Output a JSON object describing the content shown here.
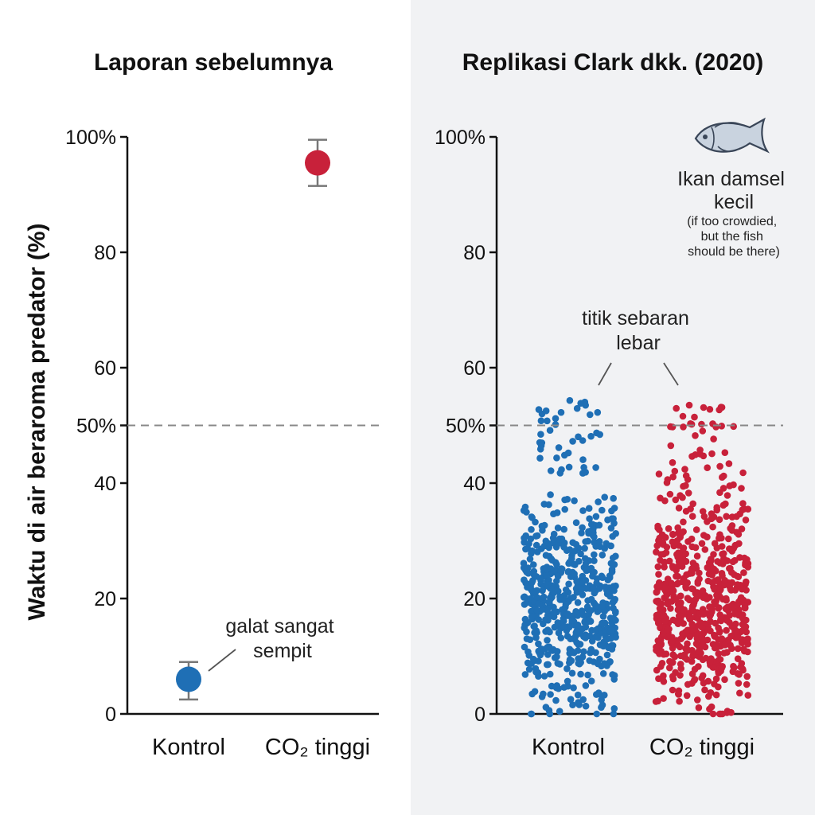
{
  "y_axis_label": "Waktu di air beraroma predator (%)",
  "colors": {
    "control": "#1f6fb5",
    "high_co2": "#c8213a",
    "error_bar": "#777777",
    "reference_line": "#888888",
    "right_bg": "#f1f2f4"
  },
  "chart_data": [
    {
      "type": "scatter",
      "title": "Laporan sebelumnya",
      "ylim": [
        0,
        100
      ],
      "y_tick_labels": [
        "0",
        "20",
        "40",
        "50%",
        "60",
        "80",
        "100%"
      ],
      "categories": [
        "Kontrol",
        "CO₂ tinggi"
      ],
      "reference_line_y": 50,
      "points": [
        {
          "category": "Kontrol",
          "mean": 6,
          "error_low": 2.5,
          "error_high": 9,
          "color": "#1f6fb5"
        },
        {
          "category": "CO₂ tinggi",
          "mean": 95.5,
          "error_low": 91.5,
          "error_high": 99.5,
          "color": "#c8213a"
        }
      ],
      "annotation": "galat sangat sempit"
    },
    {
      "type": "scatter",
      "title": "Replikasi Clark dkk. (2020)",
      "ylim": [
        0,
        100
      ],
      "y_tick_labels": [
        "0",
        "20",
        "40",
        "50%",
        "60",
        "80",
        "100%"
      ],
      "categories": [
        "Kontrol",
        "CO₂ tinggi"
      ],
      "reference_line_y": 50,
      "series": [
        {
          "category": "Kontrol",
          "color": "#1f6fb5",
          "approx_points": 600,
          "range": [
            0,
            55
          ],
          "typical_center": 18
        },
        {
          "category": "CO₂ tinggi",
          "color": "#c8213a",
          "approx_points": 650,
          "range": [
            0,
            55.5
          ],
          "typical_center": 18
        }
      ],
      "annotation": "titik sebaran lebar",
      "fish_label": "Ikan damsel kecil",
      "fish_note": "(if too crowdied, but the fish should be there)"
    }
  ]
}
